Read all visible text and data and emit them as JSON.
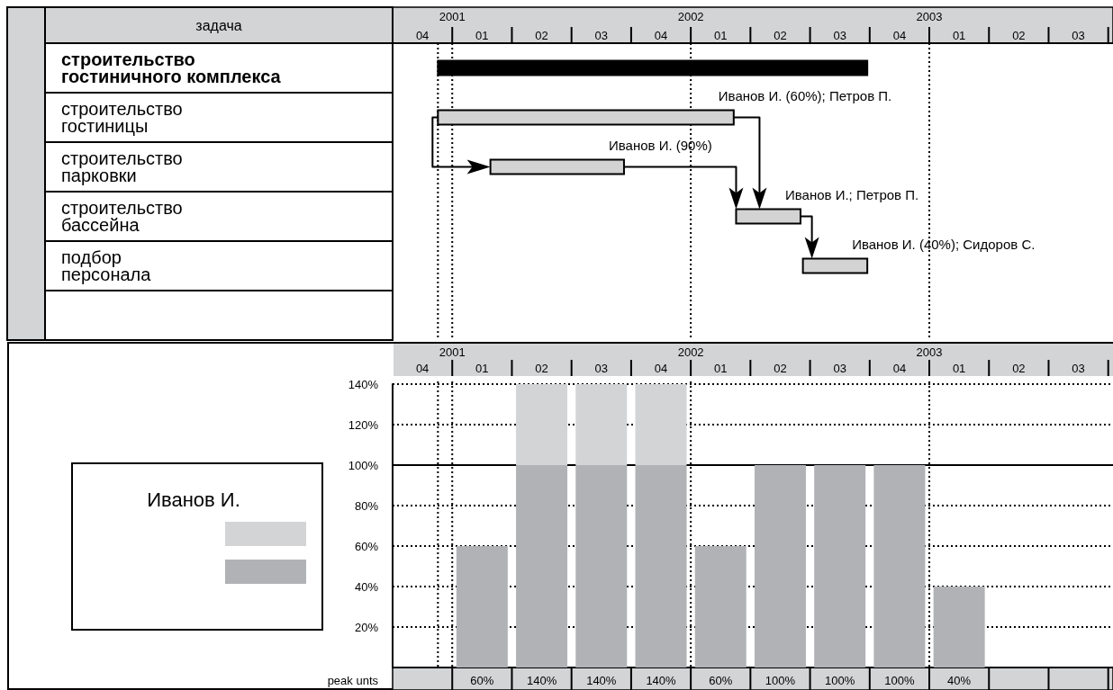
{
  "chart_data": [
    {
      "type": "bar",
      "orientation": "horizontal",
      "ylabel": "задача",
      "categories": [
        "строительство гостиничного комплекса",
        "строительство гостиницы",
        "строительство парковки",
        "строительство бассейна",
        "подбор персонала",
        null
      ],
      "base": [
        2000.94,
        2000.94,
        2001.16,
        2002.19,
        2002.47,
        null
      ],
      "values": [
        1.8,
        1.24,
        0.56,
        0.27,
        0.27,
        null
      ],
      "colors": [
        "#000000",
        "#d3d3d3",
        "#d3d3d3",
        "#d3d3d3",
        "#d3d3d3",
        "#d3d3d3"
      ],
      "xlim": [
        2000.75,
        2003.77
      ],
      "xticks": [
        2001,
        2002,
        2003
      ],
      "ref_lines": [
        {
          "axis": "x",
          "value": 2000.94,
          "line_style": "dotted",
          "color": "#000000"
        },
        {
          "axis": "x",
          "value": 2001,
          "line_style": "dotted",
          "color": "#000000"
        },
        {
          "axis": "x",
          "value": 2002,
          "line_style": "dotted",
          "color": "#000000"
        },
        {
          "axis": "x",
          "value": 2003,
          "line_style": "dotted",
          "color": "#000000"
        }
      ],
      "annotations": [
        "Иванов И. (60%); Петров П.",
        "Иванов И. (90%)",
        "Иванов И.; Петров П.",
        "Иванов И. (40%); Сидоров С.",
        "04",
        "01",
        "02",
        "03",
        "04",
        "01",
        "02",
        "03",
        "04",
        "01",
        "02",
        "03"
      ]
    },
    {
      "type": "bar",
      "stacked": true,
      "x": [
        2001.125,
        2001.375,
        2001.625,
        2001.875,
        2002.125,
        2002.375,
        2002.625,
        2002.875,
        2003.125
      ],
      "series": [
        {
          "color": "#b0b2b5",
          "values": [
            60,
            100,
            100,
            100,
            60,
            100,
            100,
            100,
            40
          ]
        },
        {
          "color": "#d3d4d6",
          "values": [
            null,
            40,
            40,
            40,
            null,
            null,
            null,
            null,
            null
          ]
        }
      ],
      "totals": [
        "60%",
        "140%",
        "140%",
        "140%",
        "60%",
        "100%",
        "100%",
        "100%",
        "40%"
      ],
      "xlim": [
        2000.75,
        2003.77
      ],
      "xticks": [
        2001,
        2002,
        2003
      ],
      "ylim": [
        0,
        140
      ],
      "yticks": [
        {
          "value": 20,
          "label": "20%"
        },
        {
          "value": 40,
          "label": "40%"
        },
        {
          "value": 60,
          "label": "60%"
        },
        {
          "value": 80,
          "label": "80%"
        },
        {
          "value": 100,
          "label": "100%"
        },
        {
          "value": 120,
          "label": "120%"
        },
        {
          "value": 140,
          "label": "140%"
        }
      ],
      "grid": "y",
      "ref_lines": [
        {
          "axis": "x",
          "value": 2000.94,
          "line_style": "dotted",
          "color": "#000000"
        },
        {
          "axis": "x",
          "value": 2001,
          "line_style": "dotted",
          "color": "#000000"
        },
        {
          "axis": "x",
          "value": 2002,
          "line_style": "dotted",
          "color": "#000000"
        },
        {
          "axis": "x",
          "value": 2003,
          "line_style": "dotted",
          "color": "#000000"
        },
        {
          "axis": "y",
          "value": 100,
          "line_style": "solid",
          "color": "#000000"
        }
      ],
      "legend_title": "Иванов И.",
      "annotations": [
        "peak unts",
        "04",
        "01",
        "02",
        "03",
        "04",
        "01",
        "02",
        "03",
        "04",
        "01",
        "02",
        "03"
      ]
    }
  ]
}
